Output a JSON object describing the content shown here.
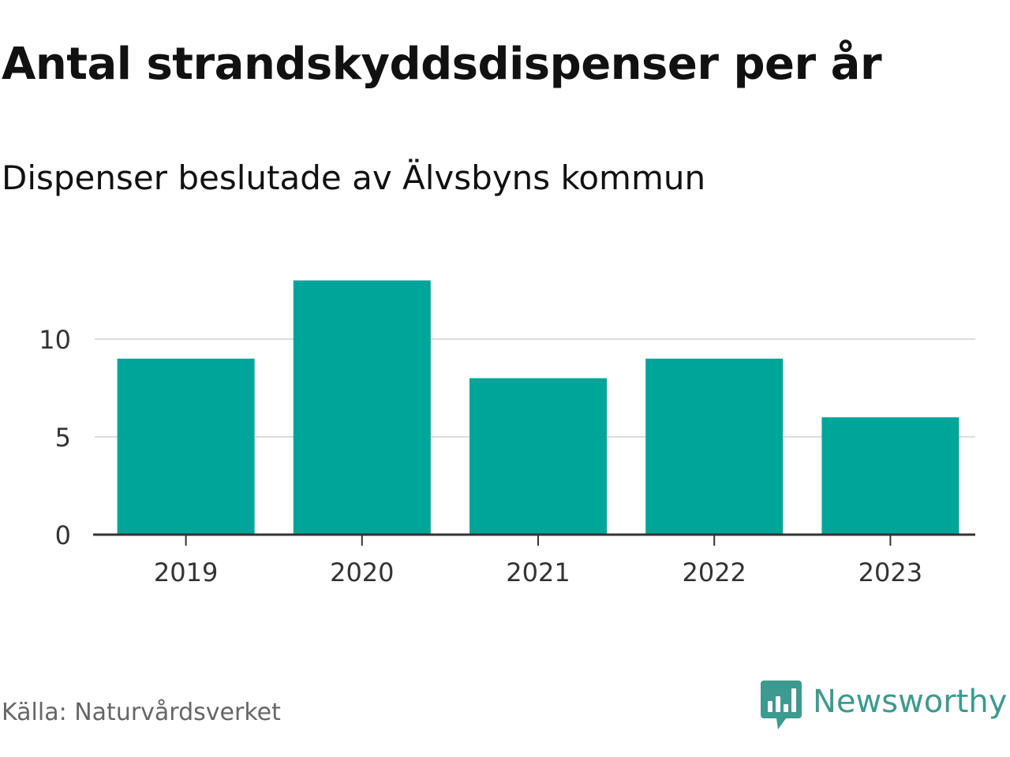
{
  "title": "Antal strandskyddsdispenser per år",
  "subtitle": "Dispenser beslutade av Älvsbyns kommun",
  "source": "Källa: Naturvårdsverket",
  "brand": {
    "name": "Newsworthy",
    "color": "#3d9a8f",
    "icon": "newsworthy-logo-icon"
  },
  "colors": {
    "bar": "#00a59a",
    "grid": "#dddddd",
    "axis": "#333333",
    "text": "#111111",
    "muted": "#666666"
  },
  "chart_data": {
    "type": "bar",
    "categories": [
      "2019",
      "2020",
      "2021",
      "2022",
      "2023"
    ],
    "values": [
      9,
      13,
      8,
      9,
      6
    ],
    "title": "Antal strandskyddsdispenser per år",
    "subtitle": "Dispenser beslutade av Älvsbyns kommun",
    "xlabel": "",
    "ylabel": "",
    "ylim": [
      0,
      13
    ],
    "yticks": [
      0,
      5,
      10
    ],
    "grid": true,
    "legend": "none"
  }
}
